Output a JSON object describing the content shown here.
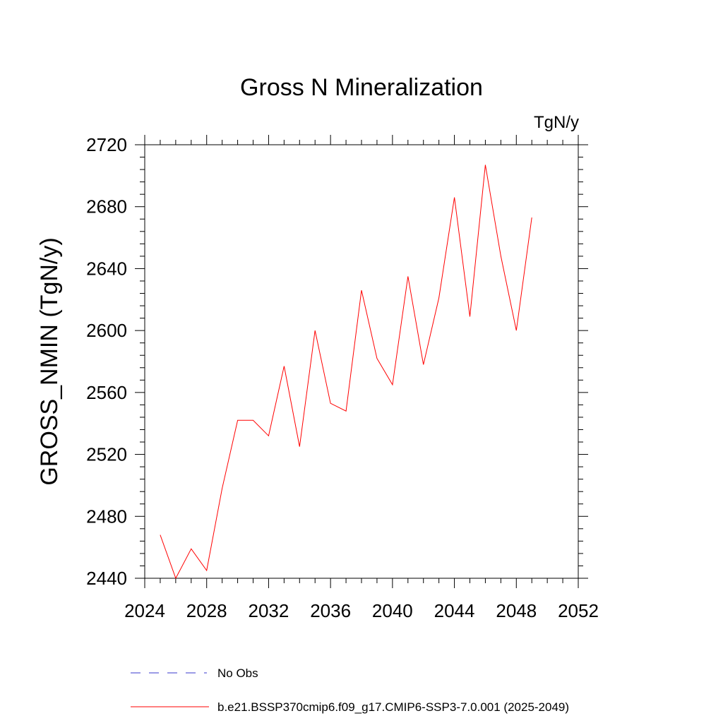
{
  "chart_data": {
    "type": "line",
    "title": "Gross N Mineralization",
    "units_label": "TgN/y",
    "ylabel": "GROSS_NMIN  (TgN/y)",
    "xlabel": "",
    "xlim": [
      2024,
      2052
    ],
    "ylim": [
      2440,
      2720
    ],
    "x_ticks": [
      "2024",
      "2028",
      "2032",
      "2036",
      "2040",
      "2044",
      "2048",
      "2052"
    ],
    "y_ticks": [
      "2440",
      "2480",
      "2520",
      "2560",
      "2600",
      "2640",
      "2680",
      "2720"
    ],
    "grid": false,
    "series": [
      {
        "name": "b.e21.BSSP370cmip6.f09_g17.CMIP6-SSP3-7.0.001 (2025-2049)",
        "color": "#ff0000",
        "x": [
          2025,
          2026,
          2027,
          2028,
          2029,
          2030,
          2031,
          2032,
          2033,
          2034,
          2035,
          2036,
          2037,
          2038,
          2039,
          2040,
          2041,
          2042,
          2043,
          2044,
          2045,
          2046,
          2047,
          2048,
          2049
        ],
        "values": [
          2468,
          2440,
          2459,
          2445,
          2498,
          2542,
          2542,
          2532,
          2577,
          2525,
          2600,
          2553,
          2548,
          2626,
          2582,
          2565,
          2635,
          2578,
          2621,
          2686,
          2609,
          2707,
          2648,
          2600,
          2673
        ]
      }
    ],
    "legend": {
      "placement": "bottom",
      "entries": [
        {
          "label": "No Obs",
          "color": "#3a3acc",
          "style": "dashed"
        },
        {
          "label": "b.e21.BSSP370cmip6.f09_g17.CMIP6-SSP3-7.0.001 (2025-2049)",
          "color": "#ff0000",
          "style": "solid"
        }
      ]
    }
  }
}
